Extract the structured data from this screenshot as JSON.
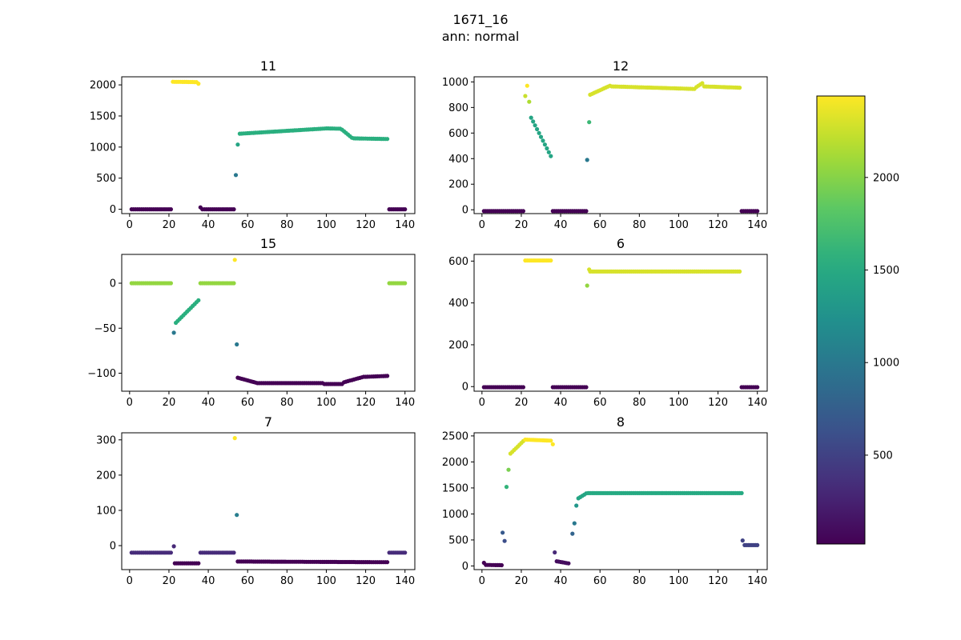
{
  "figure": {
    "title": "1671_16",
    "subtitle": "ann: normal"
  },
  "colorbar": {
    "colormap": "viridis",
    "vmin": 20,
    "vmax": 2440,
    "ticks": [
      500,
      1000,
      1500,
      2000
    ],
    "tick_labels": [
      "500",
      "1000",
      "1500",
      "2000"
    ]
  },
  "chart_data": [
    {
      "type": "scatter",
      "title": "11",
      "xlim": [
        -4,
        145
      ],
      "ylim": [
        -70,
        2130
      ],
      "xticks": [
        0,
        20,
        40,
        60,
        80,
        100,
        120,
        140
      ],
      "yticks": [
        0,
        500,
        1000,
        1500,
        2000
      ],
      "segments": [
        {
          "x_start": 1,
          "x_end": 21,
          "y_start": 0,
          "y_end": 0,
          "color_value": 20
        },
        {
          "x_start": 22,
          "x_end": 34,
          "y_start": 2050,
          "y_end": 2045,
          "color_value": 2440
        },
        {
          "x_start": 35,
          "x_end": 35,
          "y_start": 2020,
          "y_end": 2020,
          "color_value": 2440
        },
        {
          "x_start": 36,
          "x_end": 36,
          "y_start": 30,
          "y_end": 30,
          "color_value": 20
        },
        {
          "x_start": 37,
          "x_end": 53,
          "y_start": 0,
          "y_end": 0,
          "color_value": 20
        },
        {
          "x_start": 54,
          "x_end": 54,
          "y_start": 550,
          "y_end": 550,
          "color_value": 1000
        },
        {
          "x_start": 55,
          "x_end": 55,
          "y_start": 1040,
          "y_end": 1040,
          "color_value": 1450
        },
        {
          "x_start": 56,
          "x_end": 100,
          "y_start": 1215,
          "y_end": 1300,
          "color_value": 1550
        },
        {
          "x_start": 101,
          "x_end": 107,
          "y_start": 1300,
          "y_end": 1295,
          "color_value": 1550
        },
        {
          "x_start": 108,
          "x_end": 113,
          "y_start": 1280,
          "y_end": 1150,
          "color_value": 1550
        },
        {
          "x_start": 114,
          "x_end": 131,
          "y_start": 1140,
          "y_end": 1130,
          "color_value": 1550
        },
        {
          "x_start": 132,
          "x_end": 140,
          "y_start": 0,
          "y_end": 0,
          "color_value": 20
        }
      ]
    },
    {
      "type": "scatter",
      "title": "12",
      "xlim": [
        -4,
        145
      ],
      "ylim": [
        -30,
        1040
      ],
      "xticks": [
        0,
        20,
        40,
        60,
        80,
        100,
        120,
        140
      ],
      "yticks": [
        0,
        200,
        400,
        600,
        800,
        1000
      ],
      "segments": [
        {
          "x_start": 1,
          "x_end": 21,
          "y_start": -10,
          "y_end": -10,
          "color_value": 20
        },
        {
          "x_start": 22,
          "x_end": 22,
          "y_start": 890,
          "y_end": 890,
          "color_value": 2250
        },
        {
          "x_start": 23,
          "x_end": 23,
          "y_start": 970,
          "y_end": 970,
          "color_value": 2440
        },
        {
          "x_start": 24,
          "x_end": 24,
          "y_start": 845,
          "y_end": 845,
          "color_value": 2150
        },
        {
          "x_start": 25,
          "x_end": 35,
          "y_start": 720,
          "y_end": 420,
          "color_value": 1450
        },
        {
          "x_start": 36,
          "x_end": 53,
          "y_start": -10,
          "y_end": -10,
          "color_value": 20
        },
        {
          "x_start": 53.5,
          "x_end": 53.5,
          "y_start": 390,
          "y_end": 390,
          "color_value": 1000
        },
        {
          "x_start": 54.5,
          "x_end": 54.5,
          "y_start": 685,
          "y_end": 685,
          "color_value": 1650
        },
        {
          "x_start": 55,
          "x_end": 65,
          "y_start": 900,
          "y_end": 970,
          "color_value": 2300
        },
        {
          "x_start": 66,
          "x_end": 108,
          "y_start": 965,
          "y_end": 945,
          "color_value": 2300
        },
        {
          "x_start": 109,
          "x_end": 112,
          "y_start": 960,
          "y_end": 990,
          "color_value": 2300
        },
        {
          "x_start": 113,
          "x_end": 131,
          "y_start": 965,
          "y_end": 955,
          "color_value": 2300
        },
        {
          "x_start": 132,
          "x_end": 140,
          "y_start": -10,
          "y_end": -10,
          "color_value": 20
        }
      ]
    },
    {
      "type": "scatter",
      "title": "15",
      "xlim": [
        -4,
        145
      ],
      "ylim": [
        -120,
        32
      ],
      "xticks": [
        0,
        20,
        40,
        60,
        80,
        100,
        120,
        140
      ],
      "yticks": [
        -100,
        -50,
        0
      ],
      "segments": [
        {
          "x_start": 1,
          "x_end": 21,
          "y_start": 0,
          "y_end": 0,
          "color_value": 2050
        },
        {
          "x_start": 22.5,
          "x_end": 22.5,
          "y_start": -55,
          "y_end": -55,
          "color_value": 1000
        },
        {
          "x_start": 23.5,
          "x_end": 35,
          "y_start": -44,
          "y_end": -19,
          "color_value": 1550
        },
        {
          "x_start": 36,
          "x_end": 53,
          "y_start": 0,
          "y_end": 0,
          "color_value": 2050
        },
        {
          "x_start": 53.5,
          "x_end": 53.5,
          "y_start": 26,
          "y_end": 26,
          "color_value": 2440
        },
        {
          "x_start": 54.5,
          "x_end": 54.5,
          "y_start": -68,
          "y_end": -68,
          "color_value": 1000
        },
        {
          "x_start": 55,
          "x_end": 65,
          "y_start": -105,
          "y_end": -111,
          "color_value": 20
        },
        {
          "x_start": 66,
          "x_end": 98,
          "y_start": -111,
          "y_end": -111,
          "color_value": 20
        },
        {
          "x_start": 99,
          "x_end": 108,
          "y_start": -112,
          "y_end": -112,
          "color_value": 20
        },
        {
          "x_start": 109,
          "x_end": 119,
          "y_start": -110,
          "y_end": -104,
          "color_value": 20
        },
        {
          "x_start": 120,
          "x_end": 131,
          "y_start": -104,
          "y_end": -103,
          "color_value": 20
        },
        {
          "x_start": 132,
          "x_end": 140,
          "y_start": 0,
          "y_end": 0,
          "color_value": 2050
        }
      ]
    },
    {
      "type": "scatter",
      "title": "6",
      "xlim": [
        -4,
        145
      ],
      "ylim": [
        -22,
        632
      ],
      "xticks": [
        0,
        20,
        40,
        60,
        80,
        100,
        120,
        140
      ],
      "yticks": [
        0,
        200,
        400,
        600
      ],
      "segments": [
        {
          "x_start": 1,
          "x_end": 21,
          "y_start": -3,
          "y_end": -3,
          "color_value": 20
        },
        {
          "x_start": 22,
          "x_end": 35,
          "y_start": 603,
          "y_end": 603,
          "color_value": 2440
        },
        {
          "x_start": 36,
          "x_end": 53,
          "y_start": -3,
          "y_end": -3,
          "color_value": 20
        },
        {
          "x_start": 53.5,
          "x_end": 53.5,
          "y_start": 483,
          "y_end": 483,
          "color_value": 2050
        },
        {
          "x_start": 54.5,
          "x_end": 54.5,
          "y_start": 560,
          "y_end": 560,
          "color_value": 2300
        },
        {
          "x_start": 55,
          "x_end": 131,
          "y_start": 550,
          "y_end": 550,
          "color_value": 2300
        },
        {
          "x_start": 132,
          "x_end": 140,
          "y_start": -3,
          "y_end": -3,
          "color_value": 20
        }
      ]
    },
    {
      "type": "scatter",
      "title": "7",
      "xlim": [
        -4,
        145
      ],
      "ylim": [
        -68,
        320
      ],
      "xticks": [
        0,
        20,
        40,
        60,
        80,
        100,
        120,
        140
      ],
      "yticks": [
        0,
        100,
        200,
        300
      ],
      "segments": [
        {
          "x_start": 1,
          "x_end": 21,
          "y_start": -20,
          "y_end": -20,
          "color_value": 320
        },
        {
          "x_start": 22.5,
          "x_end": 22.5,
          "y_start": -2,
          "y_end": -2,
          "color_value": 300
        },
        {
          "x_start": 23,
          "x_end": 35,
          "y_start": -50,
          "y_end": -50,
          "color_value": 20
        },
        {
          "x_start": 36,
          "x_end": 53,
          "y_start": -20,
          "y_end": -20,
          "color_value": 320
        },
        {
          "x_start": 53.5,
          "x_end": 53.5,
          "y_start": 305,
          "y_end": 305,
          "color_value": 2440
        },
        {
          "x_start": 54.5,
          "x_end": 54.5,
          "y_start": 87,
          "y_end": 87,
          "color_value": 1050
        },
        {
          "x_start": 55,
          "x_end": 131,
          "y_start": -45,
          "y_end": -47,
          "color_value": 20
        },
        {
          "x_start": 132,
          "x_end": 140,
          "y_start": -20,
          "y_end": -20,
          "color_value": 320
        }
      ]
    },
    {
      "type": "scatter",
      "title": "8",
      "xlim": [
        -4,
        145
      ],
      "ylim": [
        -70,
        2560
      ],
      "xticks": [
        0,
        20,
        40,
        60,
        80,
        100,
        120,
        140
      ],
      "yticks": [
        0,
        500,
        1000,
        1500,
        2000,
        2500
      ],
      "segments": [
        {
          "x_start": 1,
          "x_end": 1,
          "y_start": 60,
          "y_end": 60,
          "color_value": 20
        },
        {
          "x_start": 2,
          "x_end": 10,
          "y_start": 20,
          "y_end": 15,
          "color_value": 20
        },
        {
          "x_start": 10.5,
          "x_end": 10.5,
          "y_start": 640,
          "y_end": 640,
          "color_value": 700
        },
        {
          "x_start": 11.5,
          "x_end": 11.5,
          "y_start": 480,
          "y_end": 480,
          "color_value": 600
        },
        {
          "x_start": 12.5,
          "x_end": 12.5,
          "y_start": 1520,
          "y_end": 1520,
          "color_value": 1600
        },
        {
          "x_start": 13.5,
          "x_end": 13.5,
          "y_start": 1850,
          "y_end": 1850,
          "color_value": 1950
        },
        {
          "x_start": 14.5,
          "x_end": 21,
          "y_start": 2160,
          "y_end": 2400,
          "color_value": 2300
        },
        {
          "x_start": 22,
          "x_end": 35,
          "y_start": 2430,
          "y_end": 2410,
          "color_value": 2440
        },
        {
          "x_start": 36,
          "x_end": 36,
          "y_start": 2340,
          "y_end": 2340,
          "color_value": 2440
        },
        {
          "x_start": 37,
          "x_end": 37,
          "y_start": 260,
          "y_end": 260,
          "color_value": 300
        },
        {
          "x_start": 38,
          "x_end": 44,
          "y_start": 90,
          "y_end": 50,
          "color_value": 100
        },
        {
          "x_start": 46,
          "x_end": 46,
          "y_start": 620,
          "y_end": 620,
          "color_value": 800
        },
        {
          "x_start": 47,
          "x_end": 47,
          "y_start": 820,
          "y_end": 820,
          "color_value": 1000
        },
        {
          "x_start": 48,
          "x_end": 48,
          "y_start": 1160,
          "y_end": 1160,
          "color_value": 1300
        },
        {
          "x_start": 49,
          "x_end": 53,
          "y_start": 1300,
          "y_end": 1395,
          "color_value": 1450
        },
        {
          "x_start": 54,
          "x_end": 132,
          "y_start": 1400,
          "y_end": 1400,
          "color_value": 1500
        },
        {
          "x_start": 132.5,
          "x_end": 132.5,
          "y_start": 490,
          "y_end": 490,
          "color_value": 500
        },
        {
          "x_start": 133.5,
          "x_end": 140,
          "y_start": 400,
          "y_end": 400,
          "color_value": 500
        }
      ]
    }
  ]
}
